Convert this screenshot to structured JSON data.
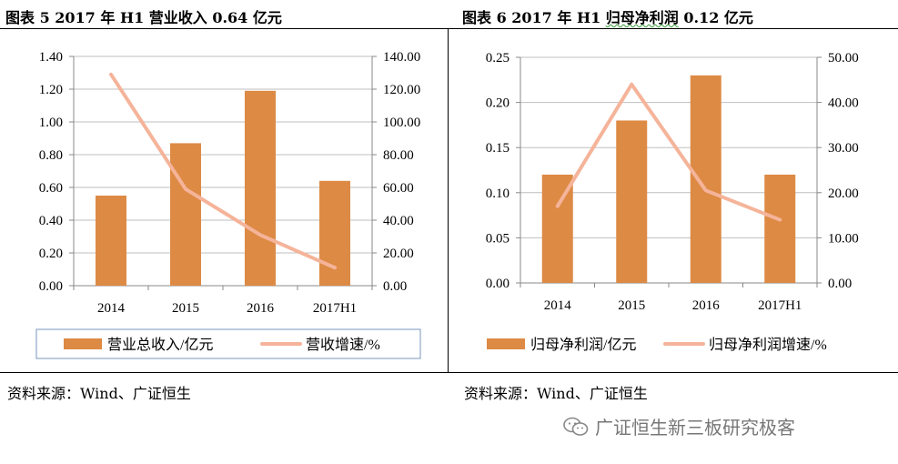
{
  "chart_data": [
    {
      "type": "bar",
      "title": "图表 5 2017 年 H1 营业收入 0.64 亿元",
      "categories": [
        "2014",
        "2015",
        "2016",
        "2017H1"
      ],
      "series": [
        {
          "name": "营业总收入/亿元",
          "type": "bar",
          "axis": "left",
          "values": [
            0.55,
            0.87,
            1.19,
            0.64
          ]
        },
        {
          "name": "营收增速/%",
          "type": "line",
          "axis": "right",
          "values": [
            129,
            59,
            31,
            11
          ]
        }
      ],
      "ylim_left": [
        0,
        1.4
      ],
      "ylim_right": [
        0,
        140
      ],
      "yticks_left": [
        "0.00",
        "0.20",
        "0.40",
        "0.60",
        "0.80",
        "1.00",
        "1.20",
        "1.40"
      ],
      "yticks_right": [
        "0.00",
        "20.00",
        "40.00",
        "60.00",
        "80.00",
        "100.00",
        "120.00",
        "140.00"
      ],
      "grid": "horizontal",
      "legend": "bottom",
      "source": "资料来源：Wind、广证恒生"
    },
    {
      "type": "bar",
      "title_prefix": "图表 6 2017 年 H1 ",
      "title_main": "归母净利润",
      "title_suffix": " 0.12 亿元",
      "categories": [
        "2014",
        "2015",
        "2016",
        "2017H1"
      ],
      "series": [
        {
          "name": "归母净利润/亿元",
          "type": "bar",
          "axis": "left",
          "values": [
            0.12,
            0.18,
            0.23,
            0.12
          ]
        },
        {
          "name": "归母净利润增速/%",
          "type": "line",
          "axis": "right",
          "values": [
            17,
            44,
            20.5,
            14
          ]
        }
      ],
      "ylim_left": [
        0,
        0.25
      ],
      "ylim_right": [
        0,
        50
      ],
      "yticks_left": [
        "0.00",
        "0.05",
        "0.10",
        "0.15",
        "0.20",
        "0.25"
      ],
      "yticks_right": [
        "0.00",
        "10.00",
        "20.00",
        "30.00",
        "40.00",
        "50.00"
      ],
      "grid": "horizontal",
      "legend": "bottom",
      "source": "资料来源：Wind、广证恒生"
    }
  ],
  "colors": {
    "bar": "#DD8A45",
    "line": "#F5B49A",
    "grid": "#BFBFBF",
    "axis": "#888888"
  },
  "watermark": {
    "text": "广证恒生新三板研究极客",
    "icon": "wechat-icon"
  }
}
